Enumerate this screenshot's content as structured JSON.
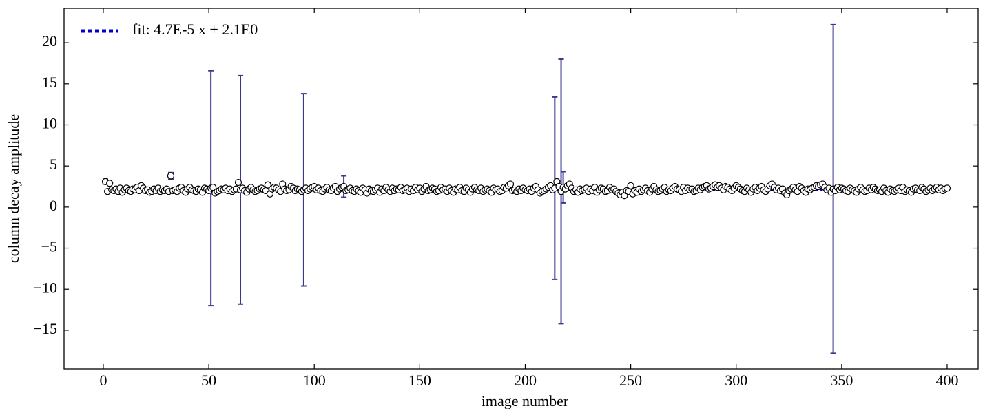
{
  "chart_data": {
    "type": "errorbar",
    "xlabel": "image number",
    "ylabel": "column decay amplitude",
    "xlim": [
      -18.6,
      414.7
    ],
    "ylim": [
      -19.7,
      24.2
    ],
    "xticks": [
      0,
      50,
      100,
      150,
      200,
      250,
      300,
      350,
      400
    ],
    "yticks": [
      {
        "value": -15,
        "label": "−15"
      },
      {
        "value": -10,
        "label": "−10"
      },
      {
        "value": -5,
        "label": "−5"
      },
      0,
      5,
      10,
      15,
      20
    ],
    "legend": "upper left",
    "series": [
      {
        "name": "fit: 4.7E-5 x + 2.1E0",
        "color": "#0000cc",
        "style": "dotted",
        "x": [
          1,
          400
        ],
        "values": [
          2.1,
          2.119
        ]
      },
      {
        "color": "#38388f",
        "marker_fill": "#ffffff",
        "marker_edge": "#000000",
        "x": [
          1,
          2,
          3,
          4,
          5,
          6,
          7,
          8,
          9,
          10,
          11,
          12,
          13,
          14,
          15,
          16,
          17,
          18,
          19,
          20,
          21,
          22,
          23,
          24,
          25,
          26,
          27,
          28,
          29,
          30,
          31,
          32,
          33,
          34,
          35,
          36,
          37,
          38,
          39,
          40,
          41,
          42,
          43,
          44,
          45,
          46,
          47,
          48,
          49,
          50,
          51,
          52,
          53,
          54,
          55,
          56,
          57,
          58,
          59,
          60,
          61,
          62,
          63,
          64,
          65,
          66,
          67,
          68,
          69,
          70,
          71,
          72,
          73,
          74,
          75,
          76,
          77,
          78,
          79,
          80,
          81,
          82,
          83,
          84,
          85,
          86,
          87,
          88,
          89,
          90,
          91,
          92,
          93,
          94,
          95,
          96,
          97,
          98,
          99,
          100,
          101,
          102,
          103,
          104,
          105,
          106,
          107,
          108,
          109,
          110,
          111,
          112,
          113,
          114,
          115,
          116,
          117,
          118,
          119,
          120,
          121,
          122,
          123,
          124,
          125,
          126,
          127,
          128,
          129,
          130,
          131,
          132,
          133,
          134,
          135,
          136,
          137,
          138,
          139,
          140,
          141,
          142,
          143,
          144,
          145,
          146,
          147,
          148,
          149,
          150,
          151,
          152,
          153,
          154,
          155,
          156,
          157,
          158,
          159,
          160,
          161,
          162,
          163,
          164,
          165,
          166,
          167,
          168,
          169,
          170,
          171,
          172,
          173,
          174,
          175,
          176,
          177,
          178,
          179,
          180,
          181,
          182,
          183,
          184,
          185,
          186,
          187,
          188,
          189,
          190,
          191,
          192,
          193,
          194,
          195,
          196,
          197,
          198,
          199,
          200,
          201,
          202,
          203,
          204,
          205,
          206,
          207,
          208,
          209,
          210,
          211,
          212,
          213,
          214,
          215,
          216,
          217,
          218,
          219,
          220,
          221,
          222,
          223,
          224,
          225,
          226,
          227,
          228,
          229,
          230,
          231,
          232,
          233,
          234,
          235,
          236,
          237,
          238,
          239,
          240,
          241,
          242,
          243,
          244,
          245,
          246,
          247,
          248,
          249,
          250,
          251,
          252,
          253,
          254,
          255,
          256,
          257,
          258,
          259,
          260,
          261,
          262,
          263,
          264,
          265,
          266,
          267,
          268,
          269,
          270,
          271,
          272,
          273,
          274,
          275,
          276,
          277,
          278,
          279,
          280,
          281,
          282,
          283,
          284,
          285,
          286,
          287,
          288,
          289,
          290,
          291,
          292,
          293,
          294,
          295,
          296,
          297,
          298,
          299,
          300,
          301,
          302,
          303,
          304,
          305,
          306,
          307,
          308,
          309,
          310,
          311,
          312,
          313,
          314,
          315,
          316,
          317,
          318,
          319,
          320,
          321,
          322,
          323,
          324,
          325,
          326,
          327,
          328,
          329,
          330,
          331,
          332,
          333,
          334,
          335,
          336,
          337,
          338,
          339,
          340,
          341,
          342,
          343,
          344,
          345,
          346,
          347,
          348,
          349,
          350,
          351,
          352,
          353,
          354,
          355,
          356,
          357,
          358,
          359,
          360,
          361,
          362,
          363,
          364,
          365,
          366,
          367,
          368,
          369,
          370,
          371,
          372,
          373,
          374,
          375,
          376,
          377,
          378,
          379,
          380,
          381,
          382,
          383,
          384,
          385,
          386,
          387,
          388,
          389,
          390,
          391,
          392,
          393,
          394,
          395,
          396,
          397,
          398,
          399,
          400
        ],
        "values": [
          3.1,
          1.9,
          2.9,
          2.1,
          2.0,
          2.2,
          1.9,
          2.3,
          1.8,
          2.1,
          2.3,
          2.0,
          1.9,
          2.2,
          2.1,
          2.4,
          2.0,
          2.6,
          2.3,
          2.0,
          2.1,
          1.8,
          1.9,
          2.2,
          2.0,
          2.3,
          1.9,
          2.1,
          2.0,
          2.2,
          1.9,
          3.8,
          2.0,
          2.1,
          1.9,
          2.3,
          2.4,
          2.0,
          1.8,
          2.2,
          2.4,
          2.1,
          2.0,
          1.9,
          2.2,
          2.1,
          1.8,
          2.3,
          2.2,
          2.0,
          2.3,
          2.4,
          1.7,
          1.9,
          2.0,
          2.2,
          2.1,
          2.3,
          2.0,
          2.2,
          1.9,
          2.1,
          2.2,
          3.0,
          2.1,
          2.3,
          2.0,
          1.8,
          2.2,
          2.4,
          2.1,
          1.9,
          2.0,
          2.2,
          2.3,
          2.1,
          2.0,
          2.7,
          1.6,
          2.2,
          2.4,
          2.3,
          2.1,
          1.9,
          2.8,
          2.2,
          2.0,
          2.1,
          2.5,
          2.3,
          2.0,
          2.2,
          2.1,
          1.9,
          2.1,
          2.3,
          2.0,
          2.2,
          2.4,
          2.5,
          2.1,
          2.3,
          2.0,
          1.9,
          2.2,
          2.4,
          2.1,
          2.0,
          2.3,
          2.5,
          1.9,
          2.2,
          2.4,
          2.5,
          2.0,
          2.1,
          2.3,
          2.0,
          1.9,
          2.2,
          2.0,
          1.8,
          2.3,
          2.1,
          1.7,
          2.2,
          2.0,
          1.9,
          2.1,
          2.3,
          1.8,
          2.2,
          2.0,
          2.4,
          2.1,
          1.9,
          2.3,
          2.0,
          2.2,
          2.1,
          2.4,
          2.0,
          2.1,
          2.3,
          1.9,
          2.2,
          2.0,
          2.4,
          2.1,
          2.3,
          1.9,
          2.2,
          2.5,
          2.0,
          2.1,
          2.3,
          2.2,
          1.9,
          2.0,
          2.4,
          2.1,
          2.2,
          1.9,
          2.3,
          2.0,
          1.8,
          2.2,
          2.1,
          2.4,
          2.0,
          1.9,
          2.3,
          2.1,
          1.8,
          2.2,
          2.4,
          2.1,
          2.0,
          2.3,
          1.9,
          2.1,
          2.2,
          2.0,
          1.8,
          2.3,
          2.1,
          2.2,
          1.9,
          2.0,
          2.4,
          2.3,
          2.6,
          2.8,
          2.0,
          2.1,
          1.9,
          2.2,
          2.0,
          2.3,
          2.1,
          2.0,
          2.2,
          1.9,
          2.3,
          2.5,
          2.1,
          1.7,
          1.9,
          2.0,
          2.2,
          2.4,
          2.6,
          2.1,
          2.3,
          3.1,
          2.5,
          1.9,
          2.4,
          2.2,
          2.6,
          2.8,
          2.3,
          1.9,
          2.1,
          1.8,
          2.2,
          2.0,
          2.1,
          2.3,
          1.9,
          2.2,
          2.0,
          2.4,
          1.8,
          2.1,
          2.3,
          2.2,
          1.9,
          2.0,
          2.4,
          2.1,
          2.2,
          1.9,
          1.7,
          1.5,
          1.8,
          1.4,
          2.0,
          1.9,
          2.6,
          1.6,
          2.0,
          1.8,
          2.2,
          1.9,
          2.1,
          2.3,
          2.0,
          1.8,
          2.2,
          2.5,
          2.1,
          1.9,
          2.0,
          2.2,
          2.4,
          1.9,
          2.1,
          2.0,
          2.3,
          2.5,
          2.2,
          2.1,
          1.9,
          2.4,
          2.0,
          2.3,
          2.1,
          2.2,
          1.9,
          2.0,
          2.3,
          2.1,
          2.4,
          2.5,
          2.6,
          2.2,
          2.3,
          2.5,
          2.7,
          2.4,
          2.6,
          2.3,
          2.1,
          2.5,
          2.4,
          2.2,
          2.0,
          2.3,
          2.6,
          2.4,
          2.2,
          2.0,
          1.9,
          2.3,
          2.1,
          1.8,
          2.2,
          2.4,
          2.0,
          2.3,
          2.5,
          2.1,
          1.9,
          2.2,
          2.6,
          2.8,
          2.4,
          2.1,
          2.3,
          2.0,
          2.2,
          1.7,
          1.5,
          2.0,
          2.2,
          2.4,
          2.1,
          1.9,
          2.5,
          2.3,
          2.0,
          1.8,
          2.2,
          2.1,
          2.3,
          2.4,
          2.6,
          2.5,
          2.7,
          2.8,
          2.4,
          2.1,
          2.3,
          1.8,
          2.2,
          2.0,
          2.4,
          2.1,
          2.3,
          2.2,
          2.0,
          1.9,
          2.3,
          2.1,
          2.0,
          1.8,
          2.2,
          2.4,
          2.1,
          1.9,
          2.0,
          2.3,
          2.1,
          2.4,
          2.2,
          2.0,
          2.1,
          1.9,
          2.3,
          2.0,
          1.8,
          2.2,
          2.0,
          1.9,
          2.1,
          2.3,
          2.0,
          2.4,
          1.9,
          2.1,
          2.0,
          1.8,
          2.2,
          2.3,
          2.1,
          2.0,
          2.4,
          2.2,
          1.9,
          2.1,
          2.3,
          2.0,
          2.2,
          2.4,
          2.1,
          2.3,
          2.0,
          2.2,
          2.3
        ],
        "errors": [
          0.3,
          0.2,
          0.2,
          0.2,
          0.2,
          0.2,
          0.2,
          0.2,
          0.2,
          0.2,
          0.2,
          0.2,
          0.2,
          0.2,
          0.2,
          0.2,
          0.2,
          0.2,
          0.2,
          0.2,
          0.2,
          0.2,
          0.2,
          0.2,
          0.2,
          0.2,
          0.2,
          0.2,
          0.2,
          0.2,
          0.2,
          0.4,
          0.2,
          0.2,
          0.2,
          0.2,
          0.2,
          0.2,
          0.2,
          0.2,
          0.2,
          0.2,
          0.2,
          0.2,
          0.2,
          0.2,
          0.2,
          0.2,
          0.2,
          0.2,
          14.3,
          0.2,
          0.2,
          0.2,
          0.2,
          0.2,
          0.2,
          0.2,
          0.2,
          0.2,
          0.2,
          0.2,
          0.2,
          0.2,
          13.9,
          0.2,
          0.2,
          0.2,
          0.2,
          0.2,
          0.2,
          0.2,
          0.2,
          0.2,
          0.2,
          0.2,
          0.2,
          0.2,
          0.2,
          0.2,
          0.2,
          0.2,
          0.2,
          0.2,
          0.2,
          0.2,
          0.2,
          0.2,
          0.2,
          0.2,
          0.2,
          0.2,
          0.2,
          0.2,
          11.7,
          0.2,
          0.2,
          0.2,
          0.2,
          0.2,
          0.2,
          0.2,
          0.2,
          0.2,
          0.2,
          0.2,
          0.2,
          0.2,
          0.2,
          0.2,
          0.2,
          0.2,
          0.2,
          1.3,
          0.2,
          0.2,
          0.2,
          0.2,
          0.2,
          0.2,
          0.2,
          0.2,
          0.2,
          0.2,
          0.2,
          0.2,
          0.2,
          0.2,
          0.2,
          0.2,
          0.2,
          0.2,
          0.2,
          0.2,
          0.2,
          0.2,
          0.2,
          0.2,
          0.2,
          0.2,
          0.2,
          0.2,
          0.2,
          0.2,
          0.2,
          0.2,
          0.2,
          0.2,
          0.2,
          0.2,
          0.2,
          0.2,
          0.2,
          0.2,
          0.2,
          0.2,
          0.2,
          0.2,
          0.2,
          0.2,
          0.2,
          0.2,
          0.2,
          0.2,
          0.2,
          0.2,
          0.2,
          0.2,
          0.2,
          0.2,
          0.2,
          0.2,
          0.2,
          0.2,
          0.2,
          0.2,
          0.2,
          0.2,
          0.2,
          0.2,
          0.2,
          0.2,
          0.2,
          0.2,
          0.2,
          0.2,
          0.2,
          0.2,
          0.2,
          0.2,
          0.2,
          0.2,
          0.2,
          0.2,
          0.2,
          0.2,
          0.2,
          0.2,
          0.2,
          0.2,
          0.2,
          0.2,
          0.2,
          0.2,
          0.2,
          0.2,
          0.2,
          0.2,
          0.2,
          0.2,
          0.2,
          0.2,
          0.2,
          11.1,
          0.2,
          0.2,
          16.1,
          1.9,
          0.2,
          0.2,
          0.2,
          0.2,
          0.2,
          0.2,
          0.2,
          0.2,
          0.2,
          0.2,
          0.2,
          0.2,
          0.2,
          0.2,
          0.2,
          0.2,
          0.2,
          0.2,
          0.2,
          0.2,
          0.2,
          0.2,
          0.2,
          0.2,
          0.2,
          0.2,
          0.2,
          0.2,
          0.2,
          0.2,
          0.2,
          0.2,
          0.2,
          0.2,
          0.2,
          0.2,
          0.2,
          0.2,
          0.2,
          0.2,
          0.2,
          0.2,
          0.2,
          0.2,
          0.2,
          0.2,
          0.2,
          0.2,
          0.2,
          0.2,
          0.2,
          0.2,
          0.2,
          0.2,
          0.2,
          0.2,
          0.2,
          0.2,
          0.2,
          0.2,
          0.2,
          0.2,
          0.2,
          0.2,
          0.2,
          0.2,
          0.2,
          0.2,
          0.2,
          0.2,
          0.2,
          0.2,
          0.2,
          0.2,
          0.2,
          0.2,
          0.2,
          0.2,
          0.2,
          0.2,
          0.2,
          0.2,
          0.2,
          0.2,
          0.2,
          0.2,
          0.2,
          0.2,
          0.2,
          0.2,
          0.2,
          0.2,
          0.2,
          0.2,
          0.2,
          0.2,
          0.2,
          0.2,
          0.2,
          0.2,
          0.2,
          0.2,
          0.2,
          0.2,
          0.2,
          0.2,
          0.2,
          0.2,
          0.2,
          0.2,
          0.2,
          0.2,
          0.2,
          0.2,
          0.2,
          0.2,
          0.2,
          0.2,
          0.2,
          0.2,
          0.2,
          0.2,
          0.2,
          0.2,
          0.2,
          0.2,
          0.2,
          20.0,
          0.2,
          0.2,
          0.2,
          0.2,
          0.2,
          0.2,
          0.2,
          0.2,
          0.2,
          0.2,
          0.2,
          0.2,
          0.2,
          0.2,
          0.2,
          0.2,
          0.2,
          0.2,
          0.2,
          0.2,
          0.2,
          0.2,
          0.2,
          0.2,
          0.2,
          0.2,
          0.2,
          0.2,
          0.2,
          0.2,
          0.2,
          0.2,
          0.2,
          0.2,
          0.2,
          0.2,
          0.2,
          0.2,
          0.2,
          0.2,
          0.2,
          0.2,
          0.2,
          0.2,
          0.2,
          0.2,
          0.2,
          0.2,
          0.2,
          0.2,
          0.2,
          0.2,
          0.2,
          0.2
        ]
      }
    ]
  }
}
